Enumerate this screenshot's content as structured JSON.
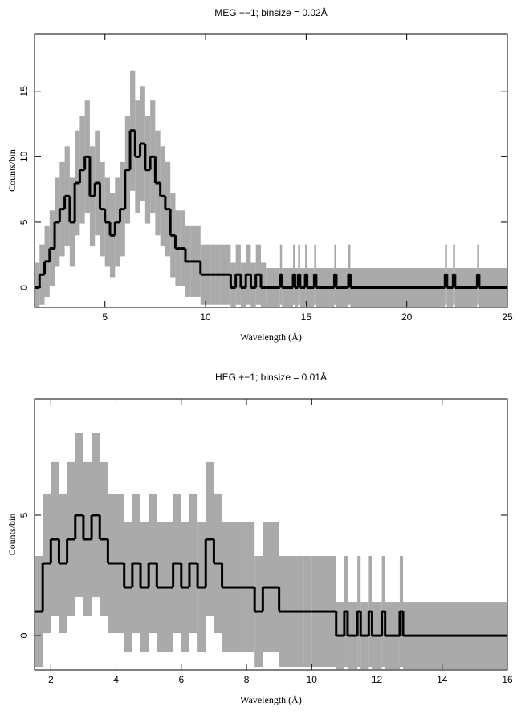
{
  "chart_data": [
    {
      "type": "line",
      "title": "MEG +−1; binsize = 0.02Å",
      "x_label": "Wavelength (Å)",
      "y_label": "Counts/bin",
      "xlim": [
        1.5,
        25
      ],
      "ylim": [
        -1.5,
        19.4
      ],
      "xticks": [
        5,
        10,
        15,
        20,
        25
      ],
      "yticks": [
        0,
        5,
        10,
        15
      ],
      "x": [
        1.5,
        1.75,
        2.0,
        2.25,
        2.5,
        2.75,
        3.0,
        3.25,
        3.5,
        3.75,
        4.0,
        4.25,
        4.5,
        4.75,
        5.0,
        5.25,
        5.5,
        5.75,
        6.0,
        6.25,
        6.5,
        6.75,
        7.0,
        7.25,
        7.5,
        7.75,
        8.0,
        8.25,
        8.5,
        8.75,
        9.0,
        9.25,
        9.5,
        9.75,
        10.0,
        10.25,
        10.5,
        10.75,
        11.0,
        11.25,
        11.5,
        11.75,
        12.0,
        12.25,
        12.5,
        12.75,
        13.0,
        13.7,
        13.8,
        14.35,
        14.45,
        14.6,
        14.7,
        14.95,
        15.05,
        15.4,
        15.5,
        16.4,
        16.5,
        17.1,
        17.2,
        21.9,
        22.0,
        22.3,
        22.4,
        23.5,
        23.6
      ],
      "series": [
        {
          "color": "#000000",
          "error_color": "#aaaaaa",
          "values": [
            0,
            1,
            2,
            3,
            5,
            6,
            7,
            5,
            8,
            9,
            10,
            7,
            8,
            6,
            5,
            4,
            5,
            6,
            9,
            12,
            10,
            11,
            9,
            10,
            8,
            7,
            6,
            4,
            3,
            3,
            2,
            2,
            2,
            1,
            1,
            1,
            1,
            1,
            1,
            0,
            1,
            0,
            1,
            0,
            1,
            0,
            0,
            1,
            0,
            1,
            0,
            1,
            0,
            1,
            0,
            1,
            0,
            1,
            0,
            1,
            0,
            1,
            0,
            1,
            0,
            1,
            0
          ],
          "errors": [
            1.9,
            2.3,
            2.7,
            2.9,
            3.4,
            3.6,
            3.8,
            3.4,
            4.0,
            4.1,
            4.3,
            3.8,
            4.0,
            3.6,
            3.4,
            3.2,
            3.4,
            3.6,
            4.1,
            4.6,
            4.3,
            4.4,
            4.1,
            4.3,
            4.0,
            3.8,
            3.6,
            3.2,
            2.9,
            2.9,
            2.7,
            2.7,
            2.7,
            2.3,
            2.3,
            2.3,
            2.3,
            2.3,
            2.3,
            1.9,
            2.3,
            1.9,
            2.3,
            1.9,
            2.3,
            1.9,
            1.5,
            2.3,
            1.5,
            2.3,
            1.5,
            2.3,
            1.5,
            2.3,
            1.5,
            2.3,
            1.5,
            2.3,
            1.5,
            2.3,
            1.5,
            2.3,
            1.5,
            2.3,
            1.5,
            2.3,
            1.5
          ]
        }
      ]
    },
    {
      "type": "line",
      "title": "HEG +−1; binsize = 0.01Å",
      "x_label": "Wavelength (Å)",
      "y_label": "Counts/bin",
      "xlim": [
        1.5,
        16
      ],
      "ylim": [
        -1.43,
        9.83
      ],
      "xticks": [
        2,
        4,
        6,
        8,
        10,
        12,
        14,
        16
      ],
      "yticks": [
        0,
        5
      ],
      "x": [
        1.5,
        1.75,
        2.0,
        2.25,
        2.5,
        2.75,
        3.0,
        3.25,
        3.5,
        3.75,
        4.0,
        4.25,
        4.5,
        4.75,
        5.0,
        5.25,
        5.5,
        5.75,
        6.0,
        6.25,
        6.5,
        6.75,
        7.0,
        7.25,
        7.5,
        7.75,
        8.0,
        8.25,
        8.5,
        8.75,
        9.0,
        9.25,
        9.5,
        9.75,
        10.0,
        10.25,
        10.5,
        10.75,
        11.0,
        11.1,
        11.4,
        11.5,
        11.75,
        11.85,
        12.15,
        12.25,
        12.7,
        12.8
      ],
      "series": [
        {
          "color": "#000000",
          "error_color": "#aaaaaa",
          "values": [
            1,
            3,
            4,
            3,
            4,
            5,
            4,
            5,
            4,
            3,
            3,
            2,
            3,
            2,
            3,
            2,
            2,
            3,
            2,
            3,
            2,
            4,
            3,
            2,
            2,
            2,
            2,
            1,
            2,
            2,
            1,
            1,
            1,
            1,
            1,
            1,
            1,
            0,
            1,
            0,
            1,
            0,
            1,
            0,
            1,
            0,
            1,
            0
          ],
          "errors": [
            2.3,
            2.9,
            3.2,
            2.9,
            3.2,
            3.4,
            3.2,
            3.4,
            3.2,
            2.9,
            2.9,
            2.7,
            2.9,
            2.7,
            2.9,
            2.7,
            2.7,
            2.9,
            2.7,
            2.9,
            2.7,
            3.2,
            2.9,
            2.7,
            2.7,
            2.7,
            2.7,
            2.3,
            2.7,
            2.7,
            2.3,
            2.3,
            2.3,
            2.3,
            2.3,
            2.3,
            2.3,
            1.4,
            2.3,
            1.4,
            2.3,
            1.4,
            2.3,
            1.4,
            2.3,
            1.4,
            2.3,
            1.4
          ]
        }
      ]
    }
  ]
}
